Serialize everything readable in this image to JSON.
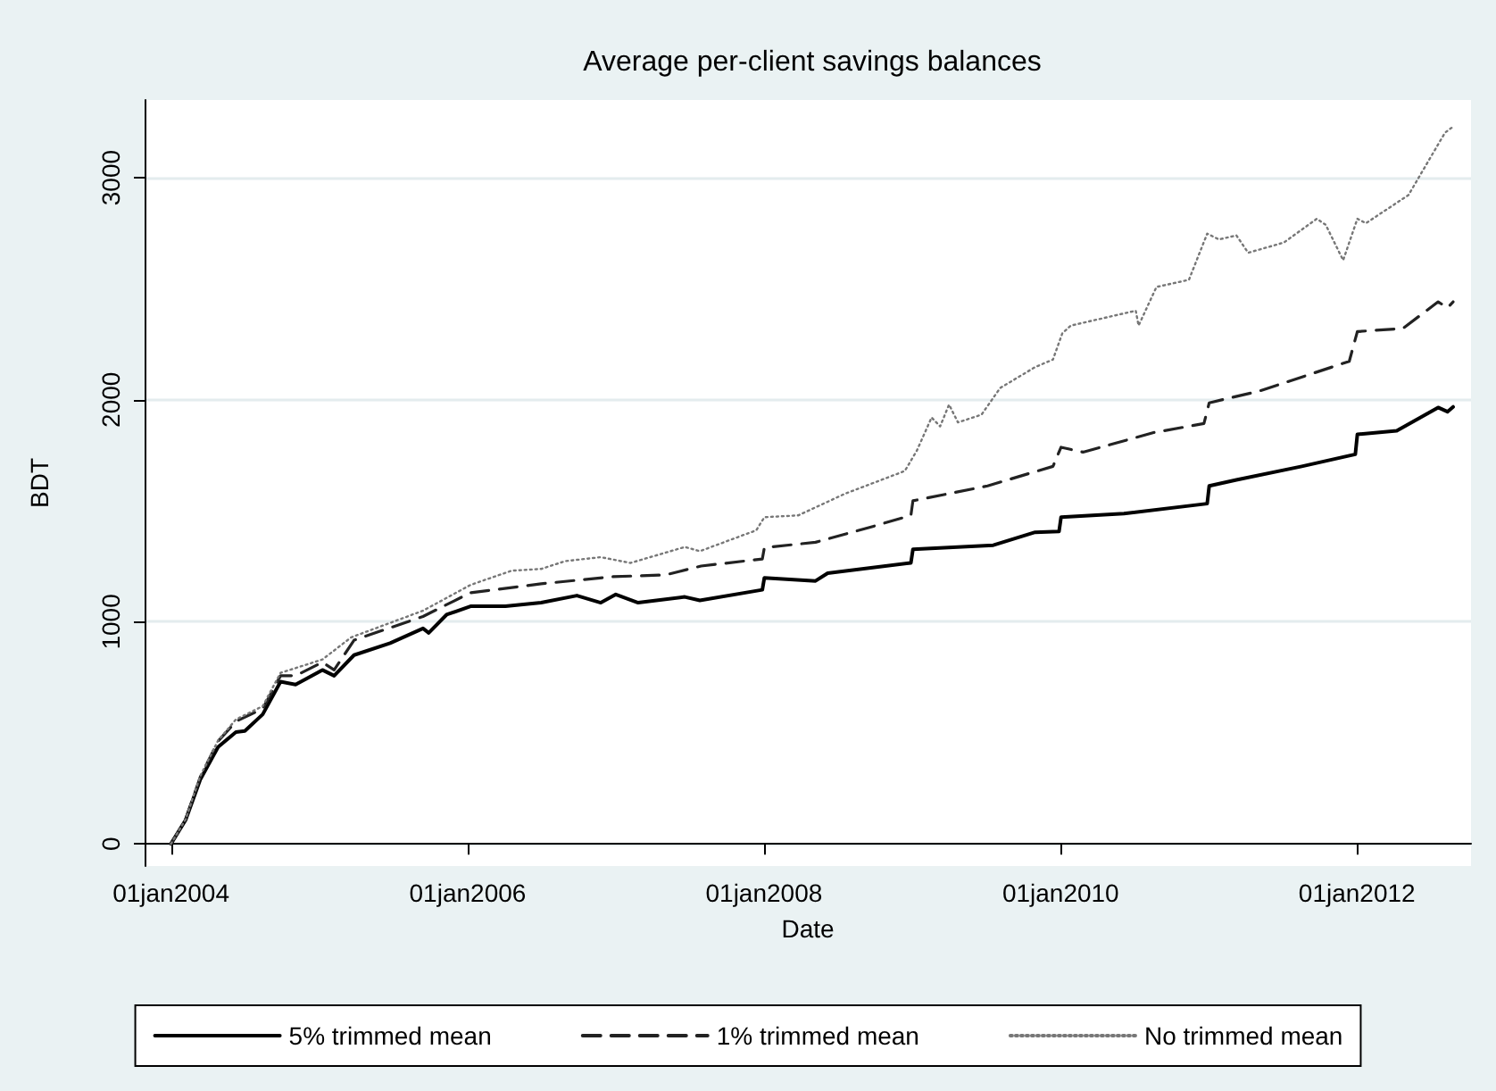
{
  "chart_data": {
    "type": "line",
    "title": "Average per-client savings balances",
    "xlabel": "Date",
    "ylabel": "BDT",
    "xlim": [
      "2003-10-28",
      "2012-10-08"
    ],
    "xticks": [
      {
        "value": "2004-01-01",
        "label": "01jan2004"
      },
      {
        "value": "2006-01-01",
        "label": "01jan2006"
      },
      {
        "value": "2008-01-01",
        "label": "01jan2008"
      },
      {
        "value": "2010-01-01",
        "label": "01jan2010"
      },
      {
        "value": "2012-01-01",
        "label": "01jan2012"
      }
    ],
    "ylim": [
      -100,
      3350
    ],
    "yticks": [
      0,
      1000,
      2000,
      3000
    ],
    "grid": "y",
    "legend": "bottom",
    "marker": "none",
    "series": [
      {
        "name": "5% trimmed mean",
        "color": "#000000",
        "line_style": "solid",
        "x": [
          "2004-01-01",
          "2004-02-06",
          "2004-03-13",
          "2004-04-26",
          "2004-06-09",
          "2004-07-01",
          "2004-08-14",
          "2004-09-27",
          "2004-11-03",
          "2005-01-08",
          "2005-02-06",
          "2005-03-27",
          "2005-06-24",
          "2005-09-13",
          "2005-09-27",
          "2005-11-10",
          "2006-01-08",
          "2006-04-04",
          "2006-07-01",
          "2006-09-27",
          "2006-11-25",
          "2007-01-01",
          "2007-02-25",
          "2007-06-20",
          "2007-07-27",
          "2007-12-28",
          "2008-01-02",
          "2008-05-07",
          "2008-06-06",
          "2008-12-28",
          "2009-01-02",
          "2009-07-19",
          "2009-10-30",
          "2009-12-28",
          "2010-01-02",
          "2010-06-06",
          "2010-12-28",
          "2011-01-02",
          "2011-03-10",
          "2011-08-18",
          "2011-12-28",
          "2012-01-02",
          "2012-04-08",
          "2012-07-19",
          "2012-08-11",
          "2012-08-25"
        ],
        "values": [
          0,
          107,
          289,
          436,
          503,
          508,
          583,
          730,
          717,
          783,
          757,
          850,
          904,
          970,
          950,
          1032,
          1070,
          1070,
          1086,
          1118,
          1086,
          1123,
          1086,
          1112,
          1096,
          1144,
          1198,
          1184,
          1219,
          1265,
          1326,
          1345,
          1403,
          1407,
          1471,
          1487,
          1532,
          1612,
          1639,
          1700,
          1754,
          1844,
          1860,
          1965,
          1946,
          1968
        ]
      },
      {
        "name": "1% trimmed mean",
        "color": "#222222",
        "line_style": "dashed",
        "x": [
          "2004-01-01",
          "2004-02-06",
          "2004-03-13",
          "2004-04-26",
          "2004-06-09",
          "2004-08-14",
          "2004-09-27",
          "2004-11-03",
          "2005-01-08",
          "2005-02-06",
          "2005-03-27",
          "2005-09-13",
          "2006-01-08",
          "2006-07-01",
          "2006-12-24",
          "2007-05-03",
          "2007-07-30",
          "2007-12-28",
          "2008-01-02",
          "2008-05-07",
          "2008-09-17",
          "2008-12-28",
          "2009-01-02",
          "2009-07-05",
          "2009-12-13",
          "2010-01-02",
          "2010-02-25",
          "2010-08-18",
          "2010-12-20",
          "2011-01-02",
          "2011-05-07",
          "2011-12-13",
          "2012-01-02",
          "2012-04-23",
          "2012-07-19",
          "2012-08-11",
          "2012-08-25"
        ],
        "values": [
          0,
          110,
          300,
          462,
          551,
          609,
          757,
          757,
          818,
          783,
          917,
          1024,
          1131,
          1171,
          1203,
          1211,
          1251,
          1283,
          1334,
          1358,
          1425,
          1479,
          1545,
          1612,
          1700,
          1786,
          1764,
          1852,
          1893,
          1986,
          2040,
          2173,
          2307,
          2321,
          2441,
          2414,
          2441
        ]
      },
      {
        "name": "No trimmed mean",
        "color": "#777777",
        "line_style": "dotted",
        "x": [
          "2004-01-01",
          "2004-02-06",
          "2004-03-13",
          "2004-04-26",
          "2004-06-09",
          "2004-08-14",
          "2004-09-27",
          "2005-01-08",
          "2005-03-20",
          "2005-09-13",
          "2006-01-08",
          "2006-04-19",
          "2006-07-01",
          "2006-08-29",
          "2006-11-25",
          "2007-02-06",
          "2007-06-20",
          "2007-07-27",
          "2007-12-13",
          "2008-01-02",
          "2008-03-25",
          "2008-07-19",
          "2008-12-13",
          "2009-01-12",
          "2009-02-17",
          "2009-03-10",
          "2009-04-01",
          "2009-04-23",
          "2009-06-20",
          "2009-08-05",
          "2009-10-30",
          "2009-12-13",
          "2010-01-05",
          "2010-01-26",
          "2010-07-05",
          "2010-07-12",
          "2010-08-25",
          "2010-11-13",
          "2010-12-28",
          "2011-01-26",
          "2011-03-10",
          "2011-04-08",
          "2011-07-05",
          "2011-09-24",
          "2011-10-16",
          "2011-11-28",
          "2012-01-02",
          "2012-01-23",
          "2012-05-07",
          "2012-08-05",
          "2012-08-25"
        ],
        "values": [
          0,
          110,
          305,
          465,
          560,
          620,
          770,
          830,
          930,
          1050,
          1166,
          1230,
          1238,
          1273,
          1291,
          1265,
          1337,
          1318,
          1412,
          1471,
          1479,
          1577,
          1679,
          1772,
          1920,
          1880,
          1978,
          1898,
          1933,
          2053,
          2147,
          2181,
          2299,
          2334,
          2401,
          2334,
          2508,
          2540,
          2748,
          2722,
          2740,
          2662,
          2708,
          2815,
          2788,
          2628,
          2815,
          2795,
          2922,
          3203,
          3230
        ]
      }
    ]
  }
}
